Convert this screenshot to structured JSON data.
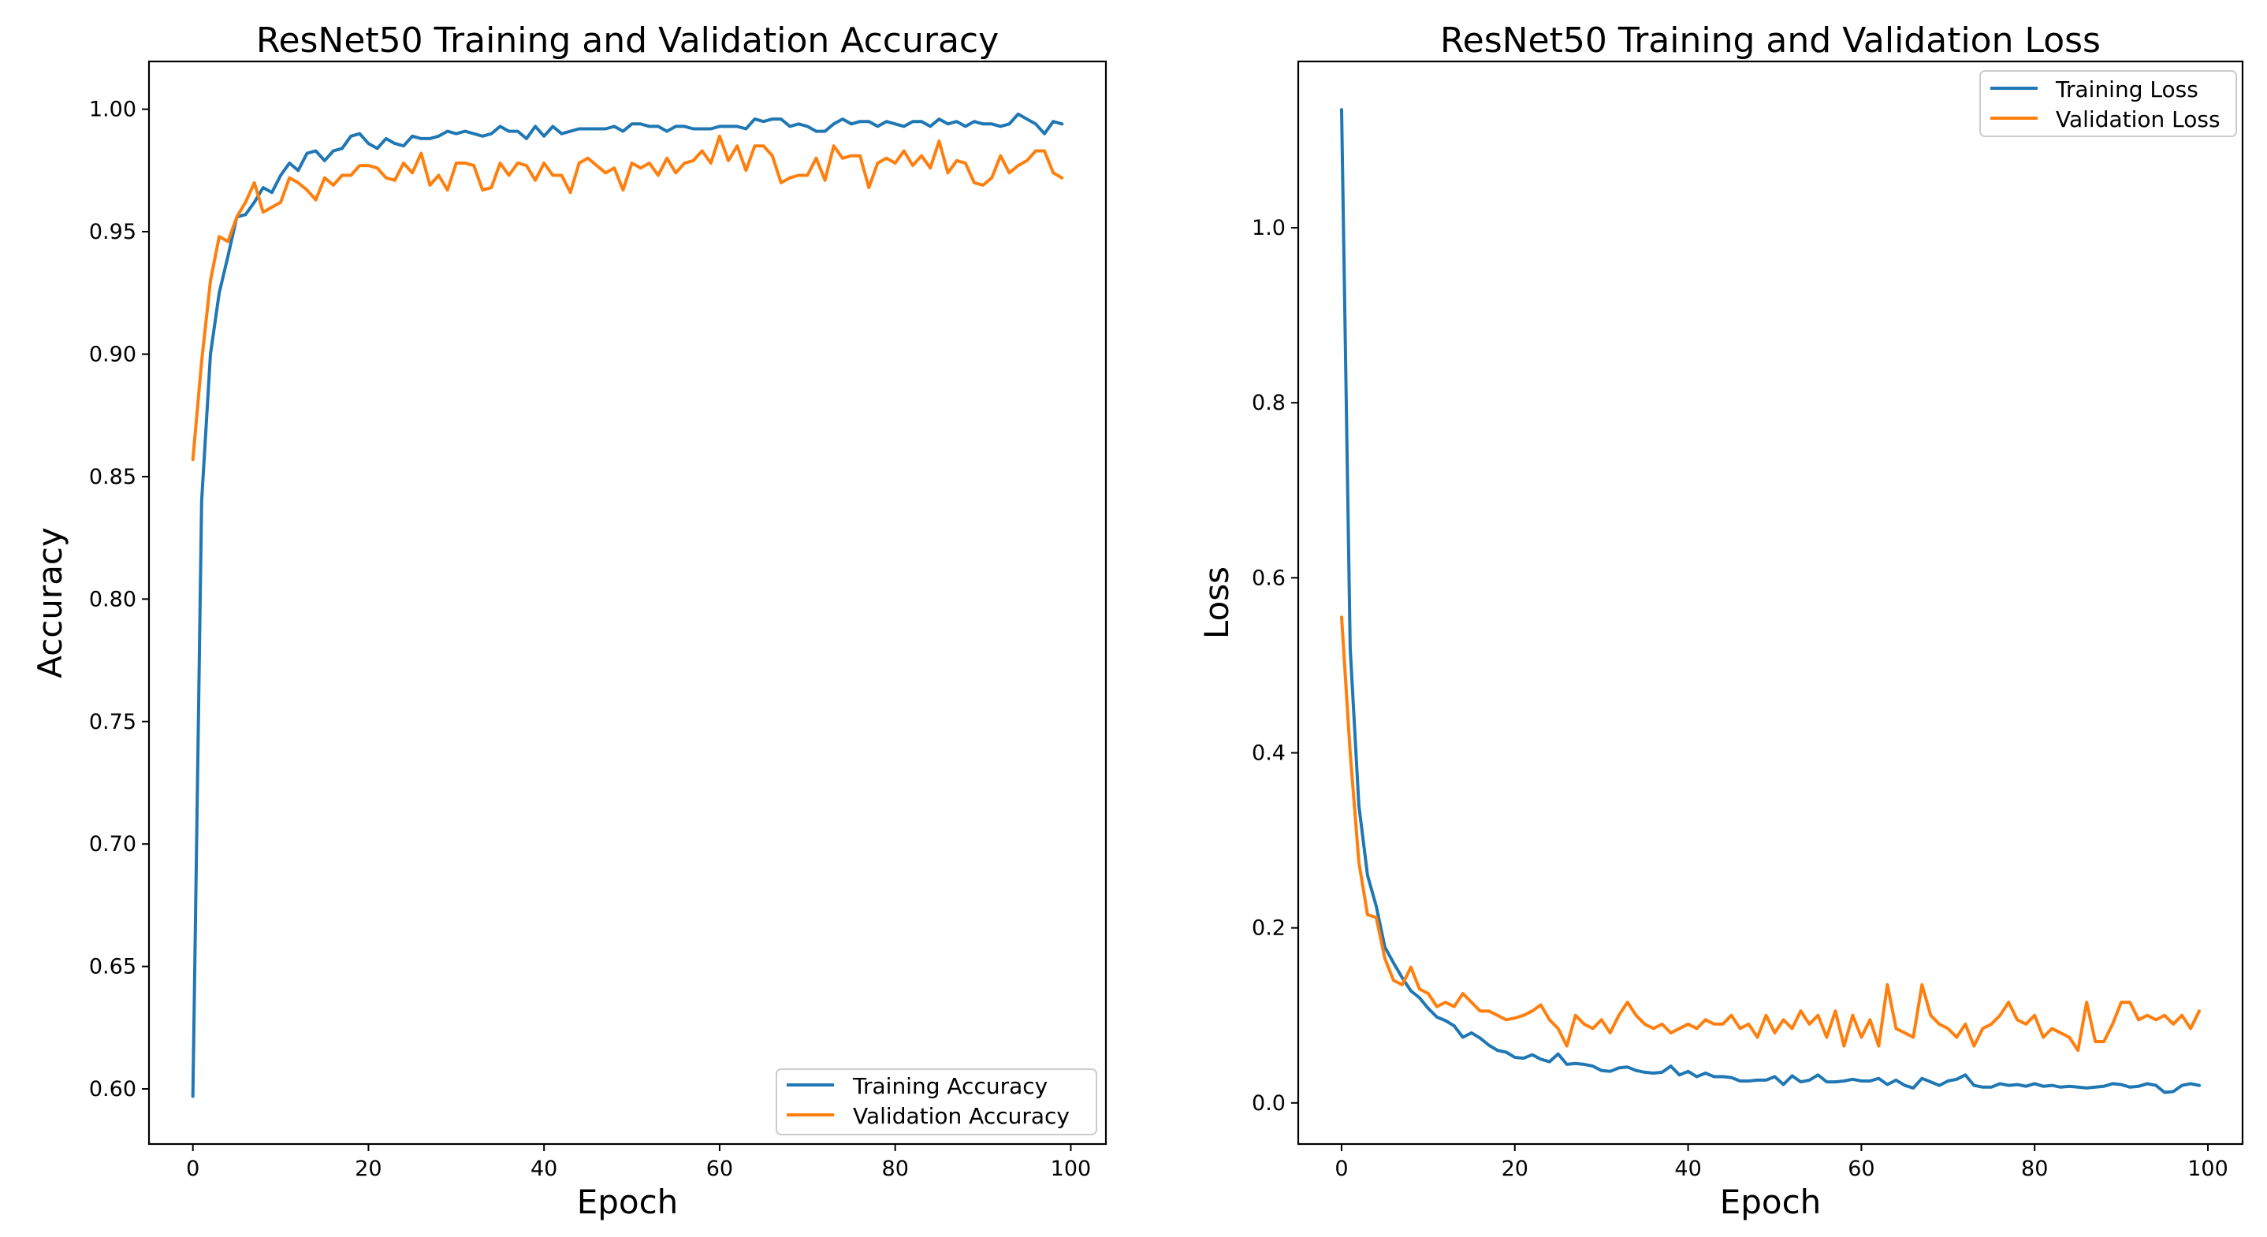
{
  "chart_data": [
    {
      "type": "line",
      "title": "ResNet50 Training and Validation Accuracy",
      "xlabel": "Epoch",
      "ylabel": "Accuracy",
      "xlim": [
        -5,
        104
      ],
      "ylim": [
        0.5775,
        1.0195
      ],
      "xticks": [
        0,
        20,
        40,
        60,
        80,
        100
      ],
      "yticks": [
        0.6,
        0.65,
        0.7,
        0.75,
        0.8,
        0.85,
        0.9,
        0.95,
        1.0
      ],
      "ytick_labels": [
        "0.60",
        "0.65",
        "0.70",
        "0.75",
        "0.80",
        "0.85",
        "0.90",
        "0.95",
        "1.00"
      ],
      "grid": false,
      "legend": "lower-right",
      "series": [
        {
          "name": "Training Accuracy",
          "color": "#1f77b4",
          "values": [
            0.597,
            0.84,
            0.9,
            0.925,
            0.94,
            0.956,
            0.957,
            0.962,
            0.968,
            0.966,
            0.973,
            0.978,
            0.975,
            0.982,
            0.983,
            0.979,
            0.983,
            0.984,
            0.989,
            0.99,
            0.986,
            0.984,
            0.988,
            0.986,
            0.985,
            0.989,
            0.988,
            0.988,
            0.989,
            0.991,
            0.99,
            0.991,
            0.99,
            0.989,
            0.99,
            0.993,
            0.991,
            0.991,
            0.988,
            0.993,
            0.989,
            0.993,
            0.99,
            0.991,
            0.992,
            0.992,
            0.992,
            0.992,
            0.993,
            0.991,
            0.994,
            0.994,
            0.993,
            0.993,
            0.991,
            0.993,
            0.993,
            0.992,
            0.992,
            0.992,
            0.993,
            0.993,
            0.993,
            0.992,
            0.996,
            0.995,
            0.996,
            0.996,
            0.993,
            0.994,
            0.993,
            0.991,
            0.991,
            0.994,
            0.996,
            0.994,
            0.995,
            0.995,
            0.993,
            0.995,
            0.994,
            0.993,
            0.995,
            0.995,
            0.993,
            0.996,
            0.994,
            0.995,
            0.993,
            0.995,
            0.994,
            0.994,
            0.993,
            0.994,
            0.998,
            0.996,
            0.994,
            0.99,
            0.995,
            0.994
          ]
        },
        {
          "name": "Validation Accuracy",
          "color": "#ff7f0e",
          "values": [
            0.857,
            0.897,
            0.93,
            0.948,
            0.946,
            0.956,
            0.962,
            0.97,
            0.958,
            0.96,
            0.962,
            0.972,
            0.97,
            0.967,
            0.963,
            0.972,
            0.969,
            0.973,
            0.973,
            0.977,
            0.977,
            0.976,
            0.972,
            0.971,
            0.978,
            0.974,
            0.982,
            0.969,
            0.973,
            0.967,
            0.978,
            0.978,
            0.977,
            0.967,
            0.968,
            0.978,
            0.973,
            0.978,
            0.977,
            0.971,
            0.978,
            0.973,
            0.973,
            0.966,
            0.978,
            0.98,
            0.977,
            0.974,
            0.976,
            0.967,
            0.978,
            0.976,
            0.978,
            0.973,
            0.98,
            0.974,
            0.978,
            0.979,
            0.983,
            0.978,
            0.989,
            0.979,
            0.985,
            0.975,
            0.985,
            0.985,
            0.981,
            0.97,
            0.972,
            0.973,
            0.973,
            0.98,
            0.971,
            0.985,
            0.98,
            0.981,
            0.981,
            0.968,
            0.978,
            0.98,
            0.978,
            0.983,
            0.977,
            0.981,
            0.976,
            0.987,
            0.974,
            0.979,
            0.978,
            0.97,
            0.969,
            0.972,
            0.981,
            0.974,
            0.977,
            0.979,
            0.983,
            0.983,
            0.974,
            0.972
          ]
        }
      ]
    },
    {
      "type": "line",
      "title": "ResNet50 Training and Validation Loss",
      "xlabel": "Epoch",
      "ylabel": "Loss",
      "xlim": [
        -5,
        104
      ],
      "ylim": [
        -0.047,
        1.19
      ],
      "xticks": [
        0,
        20,
        40,
        60,
        80,
        100
      ],
      "yticks": [
        0.0,
        0.2,
        0.4,
        0.6,
        0.8,
        1.0
      ],
      "ytick_labels": [
        "0.0",
        "0.2",
        "0.4",
        "0.6",
        "0.8",
        "1.0"
      ],
      "grid": false,
      "legend": "upper-right",
      "series": [
        {
          "name": "Training Loss",
          "color": "#1f77b4",
          "values": [
            1.135,
            0.52,
            0.34,
            0.26,
            0.225,
            0.178,
            0.16,
            0.143,
            0.128,
            0.12,
            0.108,
            0.098,
            0.094,
            0.088,
            0.075,
            0.08,
            0.074,
            0.066,
            0.06,
            0.058,
            0.052,
            0.051,
            0.055,
            0.05,
            0.047,
            0.056,
            0.044,
            0.045,
            0.044,
            0.042,
            0.037,
            0.036,
            0.04,
            0.041,
            0.037,
            0.035,
            0.034,
            0.035,
            0.042,
            0.032,
            0.036,
            0.03,
            0.034,
            0.03,
            0.03,
            0.029,
            0.025,
            0.025,
            0.026,
            0.026,
            0.03,
            0.021,
            0.031,
            0.024,
            0.026,
            0.032,
            0.024,
            0.024,
            0.025,
            0.027,
            0.025,
            0.025,
            0.028,
            0.021,
            0.026,
            0.02,
            0.017,
            0.028,
            0.024,
            0.02,
            0.025,
            0.027,
            0.032,
            0.02,
            0.018,
            0.018,
            0.022,
            0.02,
            0.021,
            0.019,
            0.022,
            0.019,
            0.02,
            0.018,
            0.019,
            0.018,
            0.017,
            0.018,
            0.019,
            0.022,
            0.021,
            0.018,
            0.019,
            0.022,
            0.02,
            0.012,
            0.013,
            0.02,
            0.022,
            0.02
          ]
        },
        {
          "name": "Validation Loss",
          "color": "#ff7f0e",
          "values": [
            0.555,
            0.4,
            0.275,
            0.215,
            0.212,
            0.165,
            0.14,
            0.135,
            0.155,
            0.13,
            0.125,
            0.11,
            0.115,
            0.11,
            0.125,
            0.115,
            0.105,
            0.105,
            0.1,
            0.095,
            0.097,
            0.1,
            0.105,
            0.112,
            0.095,
            0.085,
            0.065,
            0.1,
            0.09,
            0.085,
            0.095,
            0.08,
            0.1,
            0.115,
            0.1,
            0.09,
            0.085,
            0.09,
            0.08,
            0.085,
            0.09,
            0.085,
            0.095,
            0.09,
            0.09,
            0.1,
            0.085,
            0.09,
            0.075,
            0.1,
            0.08,
            0.095,
            0.085,
            0.105,
            0.09,
            0.1,
            0.075,
            0.105,
            0.065,
            0.1,
            0.075,
            0.095,
            0.065,
            0.135,
            0.085,
            0.08,
            0.075,
            0.135,
            0.1,
            0.09,
            0.085,
            0.075,
            0.09,
            0.065,
            0.085,
            0.09,
            0.1,
            0.115,
            0.095,
            0.09,
            0.1,
            0.075,
            0.085,
            0.08,
            0.075,
            0.06,
            0.115,
            0.07,
            0.07,
            0.09,
            0.115,
            0.115,
            0.095,
            0.1,
            0.095,
            0.1,
            0.09,
            0.1,
            0.085,
            0.105
          ]
        }
      ]
    }
  ]
}
